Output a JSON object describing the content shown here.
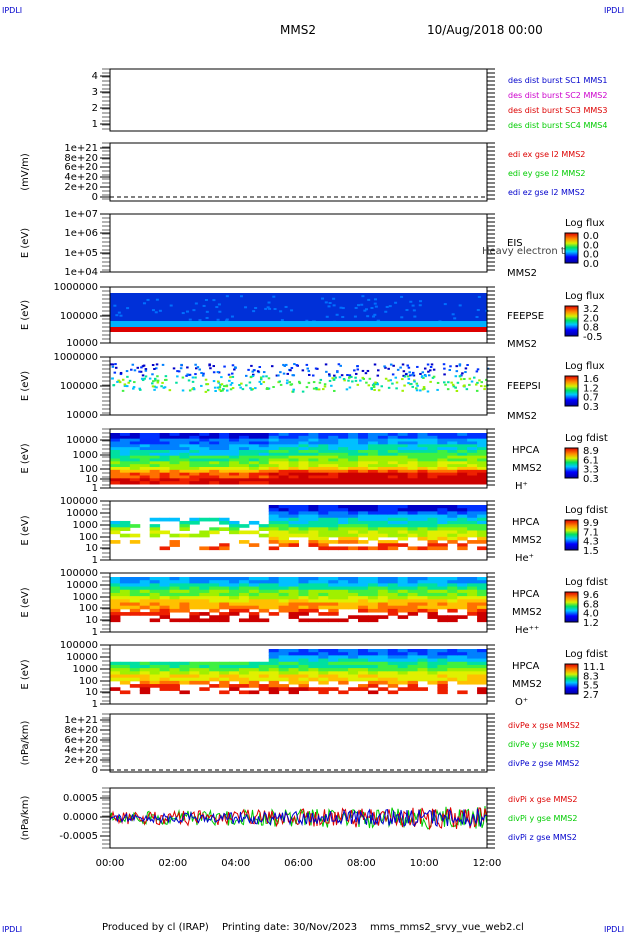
{
  "corner": {
    "tl": "IPDLI",
    "tr": "IPDLI",
    "bl": "IPDLI",
    "br": "IPDLI"
  },
  "header": {
    "spacecraft": "MMS2",
    "date": "10/Aug/2018 00:00"
  },
  "footer": {
    "produced": "Produced by cl (IRAP)",
    "printing": "Printing date: 30/Nov/2023",
    "script": "mms_mms2_srvy_vue_web2.cl"
  },
  "colors": {
    "black": "#000000",
    "blue": "#0000cc",
    "red": "#dd0000",
    "green": "#00cc00",
    "magenta": "#cc00cc"
  },
  "chart_data": {
    "type": "multi-panel time series",
    "x_ticks": [
      "00:00",
      "02:00",
      "04:00",
      "06:00",
      "08:00",
      "10:00",
      "12:00"
    ],
    "panels": [
      {
        "id": "p1",
        "ylabel": "",
        "yticks": [
          "4",
          "3",
          "2",
          "1"
        ],
        "legend": [
          {
            "text": "des dist burst SC1 MMS1",
            "color": "blue"
          },
          {
            "text": "des dist burst SC2 MMS2",
            "color": "magenta"
          },
          {
            "text": "des dist burst SC3 MMS3",
            "color": "red"
          },
          {
            "text": "des dist burst SC4 MMS4",
            "color": "green"
          }
        ]
      },
      {
        "id": "p2",
        "ylabel": "(mV/m)",
        "yticks": [
          "1e+21",
          "8e+20",
          "6e+20",
          "4e+20",
          "2e+20",
          "0"
        ],
        "legend": [
          {
            "text": "edi ex gse l2 MMS2",
            "color": "red"
          },
          {
            "text": "edi ey gse l2 MMS2",
            "color": "green"
          },
          {
            "text": "edi ez gse l2 MMS2",
            "color": "blue"
          }
        ]
      },
      {
        "id": "p3",
        "ylabel": "E (eV)",
        "yticks": [
          "1e+07",
          "1e+06",
          "1e+05",
          "1e+04"
        ],
        "instrument": [
          "EIS",
          "MMS2"
        ],
        "overlay": "Heavy electron to",
        "cbar_title": "Log flux",
        "cbar_ticks": [
          "0.0",
          "0.0",
          "0.0",
          "0.0"
        ]
      },
      {
        "id": "p4",
        "ylabel": "E (eV)",
        "yticks": [
          "1000000",
          "100000",
          "10000"
        ],
        "instrument": [
          "FEEPSE",
          "MMS2"
        ],
        "cbar_title": "Log flux",
        "cbar_ticks": [
          "3.2",
          "2.0",
          "0.8",
          "-0.5"
        ]
      },
      {
        "id": "p5",
        "ylabel": "E (eV)",
        "yticks": [
          "1000000",
          "100000",
          "10000"
        ],
        "instrument": [
          "FEEPSI",
          "MMS2"
        ],
        "cbar_title": "Log flux",
        "cbar_ticks": [
          "1.6",
          "1.2",
          "0.7",
          "0.3"
        ]
      },
      {
        "id": "p6",
        "ylabel": "E (eV)",
        "yticks": [
          "10000",
          "1000",
          "100",
          "10",
          "1"
        ],
        "instrument": [
          "HPCA",
          "MMS2",
          "H⁺"
        ],
        "cbar_title": "Log fdist",
        "cbar_ticks": [
          "8.9",
          "6.1",
          "3.3",
          "0.3"
        ]
      },
      {
        "id": "p7",
        "ylabel": "E (eV)",
        "yticks": [
          "100000",
          "10000",
          "1000",
          "100",
          "10",
          "1"
        ],
        "instrument": [
          "HPCA",
          "MMS2",
          "He⁺"
        ],
        "cbar_title": "Log fdist",
        "cbar_ticks": [
          "9.9",
          "7.1",
          "4.3",
          "1.5"
        ]
      },
      {
        "id": "p8",
        "ylabel": "E (eV)",
        "yticks": [
          "100000",
          "10000",
          "1000",
          "100",
          "10",
          "1"
        ],
        "instrument": [
          "HPCA",
          "MMS2",
          "He⁺⁺"
        ],
        "cbar_title": "Log fdist",
        "cbar_ticks": [
          "9.6",
          "6.8",
          "4.0",
          "1.2"
        ]
      },
      {
        "id": "p9",
        "ylabel": "E (eV)",
        "yticks": [
          "100000",
          "10000",
          "1000",
          "100",
          "10",
          "1"
        ],
        "instrument": [
          "HPCA",
          "MMS2",
          "O⁺"
        ],
        "cbar_title": "Log fdist",
        "cbar_ticks": [
          "11.1",
          "8.3",
          "5.5",
          "2.7"
        ]
      },
      {
        "id": "p10",
        "ylabel": "(nPa/km)",
        "yticks": [
          "1e+21",
          "8e+20",
          "6e+20",
          "4e+20",
          "2e+20",
          "0"
        ],
        "legend": [
          {
            "text": "divPe x gse MMS2",
            "color": "red"
          },
          {
            "text": "divPe y gse MMS2",
            "color": "green"
          },
          {
            "text": "divPe z gse MMS2",
            "color": "blue"
          }
        ]
      },
      {
        "id": "p11",
        "ylabel": "(nPa/km)",
        "yticks": [
          "0.0005",
          "0.0000",
          "-0.0005"
        ],
        "ylim": [
          -0.00085,
          0.00085
        ],
        "legend": [
          {
            "text": "divPi x gse MMS2",
            "color": "red"
          },
          {
            "text": "divPi y gse MMS2",
            "color": "green"
          },
          {
            "text": "divPi z gse MMS2",
            "color": "blue"
          }
        ]
      }
    ]
  }
}
